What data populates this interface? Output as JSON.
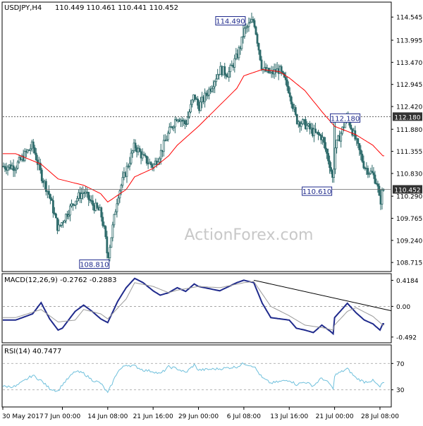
{
  "header": {
    "symbol": "USDJPY,H4",
    "ohlc": "110.449 110.461 110.441 110.452"
  },
  "watermark": "ActionForex.com",
  "colors": {
    "candle": "#2d6a6a",
    "ma": "#ff0000",
    "axis": "#000000",
    "grid": "#8a8a8a",
    "macd": "#1f2a8c",
    "signal": "#9a9a9a",
    "rsi": "#6fc0dc",
    "label_box": "#1f2a8c",
    "watermark": "#c8c8c8",
    "price_tag_bg": "#333333"
  },
  "chart_data": [
    {
      "type": "candlestick",
      "title": "USDJPY,H4",
      "y_ticks": [
        "114.545",
        "113.995",
        "113.470",
        "112.945",
        "112.420",
        "111.880",
        "111.355",
        "110.830",
        "110.290",
        "109.765",
        "109.240",
        "108.715"
      ],
      "ylim": [
        108.55,
        114.85
      ],
      "x_ticks": [
        "30 May 2017",
        "7 Jun 00:00",
        "14 Jun 08:00",
        "21 Jun 16:00",
        "29 Jun 00:00",
        "6 Jul 08:00",
        "13 Jul 16:00",
        "21 Jul 00:00",
        "28 Jul 08:00"
      ],
      "series_anchors": [
        {
          "time": "30 May 2017",
          "price": 111.0
        },
        {
          "time": "1 Jun",
          "price": 111.5
        },
        {
          "time": "2 Jun",
          "price": 110.8
        },
        {
          "time": "5 Jun",
          "price": 110.3
        },
        {
          "time": "6 Jun",
          "price": 109.5
        },
        {
          "time": "7 Jun 00:00",
          "price": 109.7
        },
        {
          "time": "8 Jun",
          "price": 110.2
        },
        {
          "time": "9 Jun",
          "price": 110.4
        },
        {
          "time": "12 Jun",
          "price": 110.1
        },
        {
          "time": "13 Jun",
          "price": 109.9
        },
        {
          "time": "14 Jun 00:00",
          "price": 109.4
        },
        {
          "time": "14 Jun 08:00",
          "price": 108.81
        },
        {
          "time": "15 Jun",
          "price": 110.3
        },
        {
          "time": "16 Jun",
          "price": 110.9
        },
        {
          "time": "19 Jun",
          "price": 111.5
        },
        {
          "time": "20 Jun",
          "price": 111.2
        },
        {
          "time": "21 Jun 16:00",
          "price": 111.0
        },
        {
          "time": "22 Jun",
          "price": 111.3
        },
        {
          "time": "23 Jun",
          "price": 111.8
        },
        {
          "time": "26 Jun",
          "price": 112.2
        },
        {
          "time": "27 Jun",
          "price": 112.0
        },
        {
          "time": "28 Jun",
          "price": 112.7
        },
        {
          "time": "29 Jun 00:00",
          "price": 112.4
        },
        {
          "time": "30 Jun",
          "price": 112.9
        },
        {
          "time": "3 Jul",
          "price": 113.3
        },
        {
          "time": "4 Jul",
          "price": 113.2
        },
        {
          "time": "5 Jul",
          "price": 113.6
        },
        {
          "time": "6 Jul 00:00",
          "price": 113.9
        },
        {
          "time": "6 Jul 08:00",
          "price": 114.2
        },
        {
          "time": "7 Jul",
          "price": 114.49
        },
        {
          "time": "10 Jul",
          "price": 113.3
        },
        {
          "time": "11 Jul",
          "price": 113.2
        },
        {
          "time": "12 Jul",
          "price": 113.3
        },
        {
          "time": "13 Jul 16:00",
          "price": 112.8
        },
        {
          "time": "14 Jul",
          "price": 112.1
        },
        {
          "time": "17 Jul",
          "price": 112.0
        },
        {
          "time": "18 Jul",
          "price": 111.8
        },
        {
          "time": "19 Jul",
          "price": 111.7
        },
        {
          "time": "20 Jul",
          "price": 111.0
        },
        {
          "time": "20 Jul 20:00",
          "price": 110.61
        },
        {
          "time": "21 Jul 00:00",
          "price": 111.4
        },
        {
          "time": "24 Jul",
          "price": 112.18
        },
        {
          "time": "25 Jul",
          "price": 111.6
        },
        {
          "time": "26 Jul",
          "price": 111.0
        },
        {
          "time": "27 Jul",
          "price": 110.8
        },
        {
          "time": "28 Jul 00:00",
          "price": 110.6
        },
        {
          "time": "28 Jul 08:00",
          "price": 110.1
        },
        {
          "time": "28 Jul 16:00",
          "price": 110.452
        }
      ],
      "moving_average_anchors": [
        {
          "time": "30 May 2017",
          "price": 111.3
        },
        {
          "time": "2 Jun",
          "price": 111.05
        },
        {
          "time": "6 Jun",
          "price": 110.7
        },
        {
          "time": "9 Jun",
          "price": 110.55
        },
        {
          "time": "13 Jun",
          "price": 110.35
        },
        {
          "time": "14 Jun 08:00",
          "price": 110.15
        },
        {
          "time": "16 Jun",
          "price": 110.45
        },
        {
          "time": "19 Jun",
          "price": 110.75
        },
        {
          "time": "21 Jun 16:00",
          "price": 110.95
        },
        {
          "time": "23 Jun",
          "price": 111.25
        },
        {
          "time": "26 Jun",
          "price": 111.5
        },
        {
          "time": "29 Jun 00:00",
          "price": 111.95
        },
        {
          "time": "3 Jul",
          "price": 112.45
        },
        {
          "time": "5 Jul",
          "price": 112.85
        },
        {
          "time": "6 Jul 08:00",
          "price": 113.15
        },
        {
          "time": "10 Jul",
          "price": 113.3
        },
        {
          "time": "12 Jul",
          "price": 113.25
        },
        {
          "time": "13 Jul 16:00",
          "price": 113.1
        },
        {
          "time": "17 Jul",
          "price": 112.8
        },
        {
          "time": "19 Jul",
          "price": 112.3
        },
        {
          "time": "21 Jul 00:00",
          "price": 111.95
        },
        {
          "time": "25 Jul",
          "price": 111.75
        },
        {
          "time": "27 Jul",
          "price": 111.5
        },
        {
          "time": "28 Jul 16:00",
          "price": 111.25
        }
      ],
      "horizontal_levels": [
        {
          "price": 112.18,
          "label": "112.180"
        },
        {
          "price": 110.452,
          "label": "110.452"
        }
      ],
      "annotations": [
        {
          "text": "114.490",
          "time": "6 Jul 08:00",
          "price": 114.49
        },
        {
          "text": "108.810",
          "time": "14 Jun 08:00",
          "price": 108.81
        },
        {
          "text": "112.180",
          "time": "21 Jul 00:00",
          "price": 112.18
        },
        {
          "text": "110.610",
          "time": "20 Jul 20:00",
          "price": 110.61
        }
      ],
      "grid": false
    },
    {
      "type": "line",
      "title": "MACD(12,26,9) -0.2762 -0.2883",
      "y_ticks": [
        "0.4184",
        "0.00",
        "-0.492"
      ],
      "ylim": [
        -0.55,
        0.48
      ],
      "series": [
        {
          "name": "MACD",
          "anchors": [
            {
              "time": "30 May 2017",
              "value": -0.22
            },
            {
              "time": "1 Jun",
              "value": -0.12
            },
            {
              "time": "2 Jun",
              "value": 0.06
            },
            {
              "time": "5 Jun",
              "value": -0.2
            },
            {
              "time": "6 Jun",
              "value": -0.38
            },
            {
              "time": "7 Jun 00:00",
              "value": -0.35
            },
            {
              "time": "8 Jun",
              "value": -0.08
            },
            {
              "time": "9 Jun",
              "value": 0.02
            },
            {
              "time": "12 Jun",
              "value": -0.08
            },
            {
              "time": "13 Jun",
              "value": -0.2
            },
            {
              "time": "14 Jun 08:00",
              "value": -0.26
            },
            {
              "time": "15 Jun",
              "value": 0.08
            },
            {
              "time": "16 Jun",
              "value": 0.3
            },
            {
              "time": "19 Jun",
              "value": 0.45
            },
            {
              "time": "20 Jun",
              "value": 0.38
            },
            {
              "time": "21 Jun 16:00",
              "value": 0.25
            },
            {
              "time": "22 Jun",
              "value": 0.18
            },
            {
              "time": "23 Jun",
              "value": 0.22
            },
            {
              "time": "26 Jun",
              "value": 0.3
            },
            {
              "time": "27 Jun",
              "value": 0.24
            },
            {
              "time": "28 Jun",
              "value": 0.36
            },
            {
              "time": "29 Jun 00:00",
              "value": 0.32
            },
            {
              "time": "3 Jul",
              "value": 0.25
            },
            {
              "time": "5 Jul",
              "value": 0.38
            },
            {
              "time": "6 Jul 08:00",
              "value": 0.42
            },
            {
              "time": "7 Jul",
              "value": 0.38
            },
            {
              "time": "10 Jul",
              "value": 0.05
            },
            {
              "time": "11 Jul",
              "value": -0.18
            },
            {
              "time": "13 Jul 16:00",
              "value": -0.22
            },
            {
              "time": "14 Jul",
              "value": -0.35
            },
            {
              "time": "17 Jul",
              "value": -0.38
            },
            {
              "time": "18 Jul",
              "value": -0.42
            },
            {
              "time": "19 Jul",
              "value": -0.3
            },
            {
              "time": "20 Jul",
              "value": -0.4
            },
            {
              "time": "20 Jul 20:00",
              "value": -0.44
            },
            {
              "time": "21 Jul 00:00",
              "value": -0.18
            },
            {
              "time": "24 Jul",
              "value": 0.05
            },
            {
              "time": "25 Jul",
              "value": -0.1
            },
            {
              "time": "26 Jul",
              "value": -0.22
            },
            {
              "time": "27 Jul",
              "value": -0.28
            },
            {
              "time": "28 Jul 08:00",
              "value": -0.38
            },
            {
              "time": "28 Jul 16:00",
              "value": -0.28
            }
          ]
        },
        {
          "name": "Signal",
          "anchors": [
            {
              "time": "30 May 2017",
              "value": -0.18
            },
            {
              "time": "2 Jun",
              "value": -0.05
            },
            {
              "time": "6 Jun",
              "value": -0.25
            },
            {
              "time": "8 Jun",
              "value": -0.22
            },
            {
              "time": "9 Jun",
              "value": -0.05
            },
            {
              "time": "13 Jun",
              "value": -0.12
            },
            {
              "time": "14 Jun 08:00",
              "value": -0.2
            },
            {
              "time": "16 Jun",
              "value": 0.12
            },
            {
              "time": "19 Jun",
              "value": 0.38
            },
            {
              "time": "21 Jun 16:00",
              "value": 0.32
            },
            {
              "time": "23 Jun",
              "value": 0.22
            },
            {
              "time": "26 Jun",
              "value": 0.26
            },
            {
              "time": "29 Jun 00:00",
              "value": 0.32
            },
            {
              "time": "3 Jul",
              "value": 0.3
            },
            {
              "time": "6 Jul 08:00",
              "value": 0.38
            },
            {
              "time": "7 Jul",
              "value": 0.4
            },
            {
              "time": "10 Jul",
              "value": 0.2
            },
            {
              "time": "11 Jul",
              "value": 0.0
            },
            {
              "time": "13 Jul 16:00",
              "value": -0.15
            },
            {
              "time": "17 Jul",
              "value": -0.3
            },
            {
              "time": "19 Jul",
              "value": -0.34
            },
            {
              "time": "20 Jul 20:00",
              "value": -0.38
            },
            {
              "time": "21 Jul 00:00",
              "value": -0.3
            },
            {
              "time": "24 Jul",
              "value": -0.08
            },
            {
              "time": "25 Jul",
              "value": -0.02
            },
            {
              "time": "27 Jul",
              "value": -0.16
            },
            {
              "time": "28 Jul 08:00",
              "value": -0.26
            },
            {
              "time": "28 Jul 16:00",
              "value": -0.3
            }
          ]
        }
      ],
      "trendline": {
        "from": {
          "time": "7 Jul",
          "value": 0.42
        },
        "to": {
          "time": "28 Jul 16:00",
          "value": -0.07
        }
      }
    },
    {
      "type": "line",
      "title": "RSI(14) 40.7477",
      "y_ticks": [
        "70",
        "30"
      ],
      "ylim": [
        5,
        95
      ],
      "levels": [
        70,
        30
      ],
      "series": [
        {
          "name": "RSI",
          "anchors": [
            {
              "time": "30 May 2017",
              "value": 35
            },
            {
              "time": "1 Jun",
              "value": 52
            },
            {
              "time": "2 Jun",
              "value": 44
            },
            {
              "time": "5 Jun",
              "value": 32
            },
            {
              "time": "6 Jun",
              "value": 28
            },
            {
              "time": "7 Jun 00:00",
              "value": 38
            },
            {
              "time": "8 Jun",
              "value": 58
            },
            {
              "time": "9 Jun",
              "value": 55
            },
            {
              "time": "12 Jun",
              "value": 45
            },
            {
              "time": "13 Jun",
              "value": 40
            },
            {
              "time": "14 Jun 08:00",
              "value": 25
            },
            {
              "time": "15 Jun",
              "value": 58
            },
            {
              "time": "16 Jun",
              "value": 68
            },
            {
              "time": "19 Jun",
              "value": 66
            },
            {
              "time": "20 Jun",
              "value": 60
            },
            {
              "time": "21 Jun 16:00",
              "value": 58
            },
            {
              "time": "22 Jun",
              "value": 54
            },
            {
              "time": "23 Jun",
              "value": 65
            },
            {
              "time": "26 Jun",
              "value": 62
            },
            {
              "time": "27 Jun",
              "value": 56
            },
            {
              "time": "28 Jun",
              "value": 68
            },
            {
              "time": "29 Jun 00:00",
              "value": 60
            },
            {
              "time": "3 Jul",
              "value": 62
            },
            {
              "time": "5 Jul",
              "value": 65
            },
            {
              "time": "6 Jul 08:00",
              "value": 70
            },
            {
              "time": "7 Jul",
              "value": 66
            },
            {
              "time": "10 Jul",
              "value": 48
            },
            {
              "time": "11 Jul",
              "value": 40
            },
            {
              "time": "13 Jul 16:00",
              "value": 45
            },
            {
              "time": "14 Jul",
              "value": 38
            },
            {
              "time": "17 Jul",
              "value": 42
            },
            {
              "time": "18 Jul",
              "value": 36
            },
            {
              "time": "19 Jul",
              "value": 48
            },
            {
              "time": "20 Jul",
              "value": 38
            },
            {
              "time": "20 Jul 20:00",
              "value": 30
            },
            {
              "time": "21 Jul 00:00",
              "value": 52
            },
            {
              "time": "24 Jul",
              "value": 62
            },
            {
              "time": "25 Jul",
              "value": 48
            },
            {
              "time": "26 Jul",
              "value": 42
            },
            {
              "time": "27 Jul",
              "value": 44
            },
            {
              "time": "28 Jul 08:00",
              "value": 34
            },
            {
              "time": "28 Jul 16:00",
              "value": 40.7477
            }
          ]
        }
      ]
    }
  ]
}
